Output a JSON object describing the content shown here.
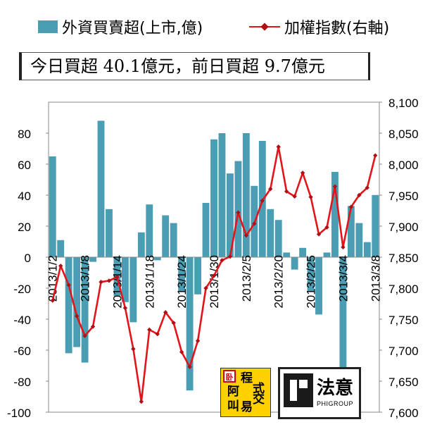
{
  "legend": {
    "bars_label": "外資買賣超(上市,億)",
    "line_label": "加權指數(右軸)"
  },
  "summary_text": "今日買超 40.1億元，前日買超 9.7億元",
  "colors": {
    "bars": "#4a9db3",
    "line": "#e3151a",
    "markers": "#b01015"
  },
  "logos": {
    "left": {
      "mark": "卧",
      "chars": [
        "阿",
        "叫",
        "程",
        "式",
        "易",
        "交"
      ]
    },
    "right": {
      "name": "法意",
      "sub": "PHIGROUP"
    }
  },
  "chart_data": {
    "type": "bar+line",
    "title": "",
    "xlabel": "",
    "ylabel": "",
    "ylim": [
      -100,
      100
    ],
    "y2lim": [
      7600,
      8100
    ],
    "yticks": [
      80,
      60,
      40,
      20,
      0,
      -20,
      -40,
      -60,
      -80,
      -100
    ],
    "y2ticks": [
      "8,100",
      "8,050",
      "8,000",
      "7,950",
      "7,900",
      "7,850",
      "7,800",
      "7,750",
      "7,700",
      "7,650",
      "7,600"
    ],
    "x_tick_labels": [
      "2013/1/2",
      "2013/1/8",
      "2013/1/14",
      "2013/1/18",
      "2013/1/24",
      "2013/1/30",
      "2013/2/5",
      "2013/2/20",
      "2013/2/25",
      "2013/3/4",
      "2013/3/8"
    ],
    "x_tick_positions": [
      0,
      4,
      8,
      12,
      16,
      20,
      24,
      28,
      32,
      36,
      40
    ],
    "grid": false,
    "legend_position": "top",
    "series": [
      {
        "name": "外資買賣超(上市,億)",
        "type": "bar",
        "axis": "left",
        "values": [
          65,
          11,
          -62,
          -58,
          -68,
          -3,
          88,
          31,
          -25,
          -29,
          -42,
          16,
          34,
          -2,
          27,
          22,
          -22,
          -86,
          -24,
          35,
          76,
          80,
          54,
          62,
          80,
          46,
          75,
          31,
          24,
          3,
          -8,
          6,
          -22,
          -37,
          3,
          55,
          -71,
          33,
          22,
          9.7,
          40.1
        ]
      },
      {
        "name": "加權指數(右軸)",
        "type": "line",
        "axis": "right",
        "values": [
          7780,
          7836,
          7805,
          7755,
          7723,
          7738,
          7810,
          7812,
          7818,
          7768,
          7702,
          7617,
          7733,
          7726,
          7761,
          7744,
          7697,
          7673,
          7715,
          7800,
          7820,
          7845,
          7851,
          7922,
          7885,
          7904,
          7941,
          7960,
          8028,
          7956,
          7948,
          7986,
          7947,
          7887,
          7898,
          7964,
          7866,
          7931,
          7950,
          7962,
          8014
        ]
      }
    ]
  }
}
